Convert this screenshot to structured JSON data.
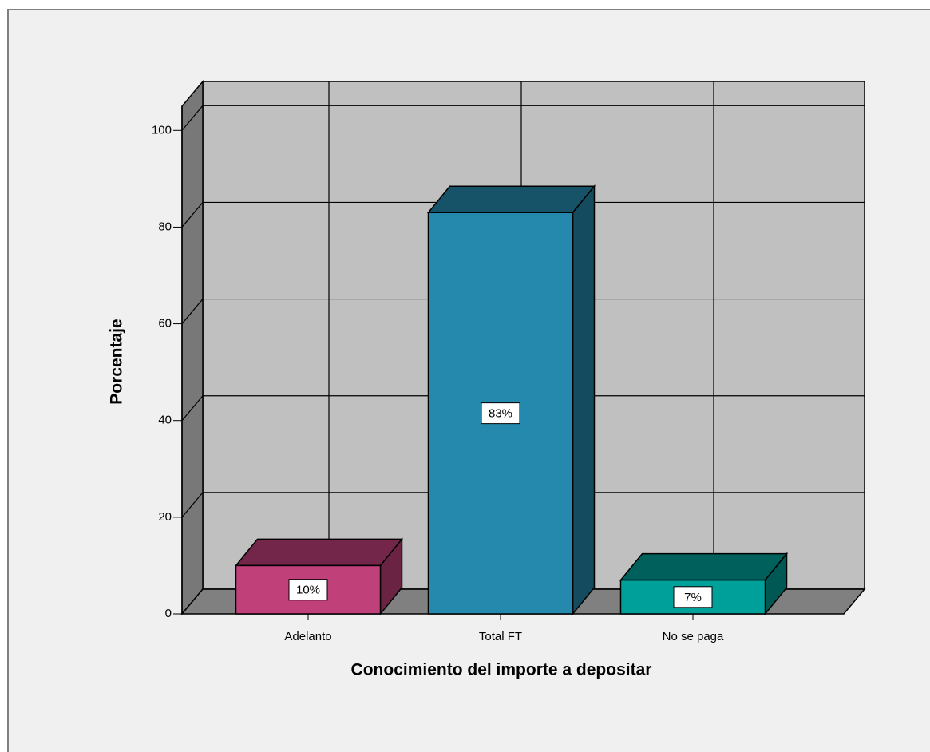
{
  "chart_data": {
    "type": "bar3d",
    "x_label": "Conocimiento del importe a depositar",
    "y_label": "Porcentaje",
    "categories": [
      "Adelanto",
      "Total FT",
      "No se paga"
    ],
    "values": [
      10,
      83,
      7
    ],
    "value_labels": [
      "10%",
      "83%",
      "7%"
    ],
    "colors": [
      "#c0407a",
      "#2589ad",
      "#00a09a"
    ],
    "ylim": [
      0,
      105
    ],
    "yticks": [
      0,
      20,
      40,
      60,
      80,
      100
    ],
    "grid": true
  }
}
